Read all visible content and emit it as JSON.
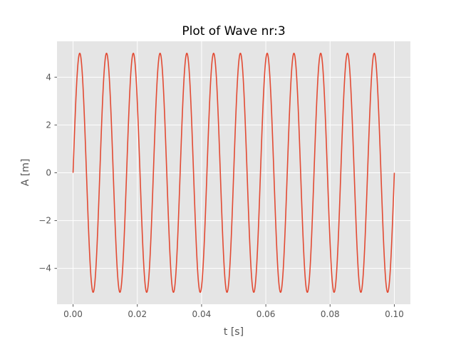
{
  "chart_data": {
    "type": "line",
    "title": "Plot of Wave nr:3",
    "xlabel": "t [s]",
    "ylabel": "A [m]",
    "xlim": [
      -0.005,
      0.105
    ],
    "ylim": [
      -5.5,
      5.5
    ],
    "x_ticks": [
      0.0,
      0.02,
      0.04,
      0.06,
      0.08,
      0.1
    ],
    "x_tick_labels": [
      "0.00",
      "0.02",
      "0.04",
      "0.06",
      "0.08",
      "0.10"
    ],
    "y_ticks": [
      -4,
      -2,
      0,
      2,
      4
    ],
    "y_tick_labels": [
      "−4",
      "−2",
      "0",
      "2",
      "4"
    ],
    "grid": true,
    "series": [
      {
        "color": "#E24A33",
        "function": "sine",
        "amplitude": 5,
        "frequency_hz": 120,
        "t_start": 0.0,
        "t_end": 0.1
      }
    ],
    "colors": {
      "background": "#E5E5E5",
      "grid": "#FFFFFF",
      "line": "#E24A33",
      "tick": "#555555"
    }
  }
}
